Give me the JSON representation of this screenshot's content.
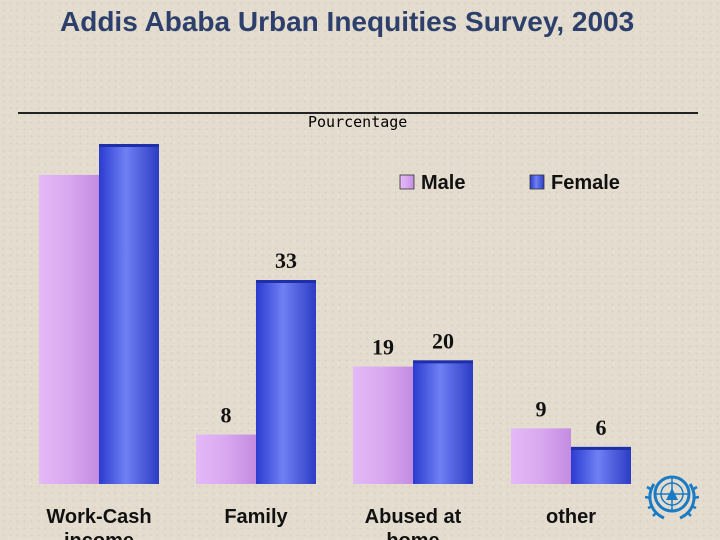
{
  "title": "Addis Ababa Urban Inequities Survey, 2003",
  "chart_data": {
    "type": "bar",
    "ylabel": "Pourcentage",
    "categories": [
      "Work-Cash income",
      "Family",
      "Abused at home",
      "other"
    ],
    "series": [
      {
        "name": "Male",
        "color": "#d9a8f0",
        "values": [
          50,
          8,
          19,
          9
        ],
        "labels": [
          "",
          "8",
          "19",
          "9"
        ]
      },
      {
        "name": "Female",
        "color": "#4d5fe0",
        "values": [
          55,
          33,
          20,
          6
        ],
        "labels": [
          "",
          "33",
          "20",
          "6"
        ]
      }
    ],
    "ylim": [
      0,
      55
    ],
    "grid": false,
    "legend_position": "top-right"
  },
  "logo": {
    "icon": "un-emblem-icon",
    "color": "#1a7bc4"
  }
}
